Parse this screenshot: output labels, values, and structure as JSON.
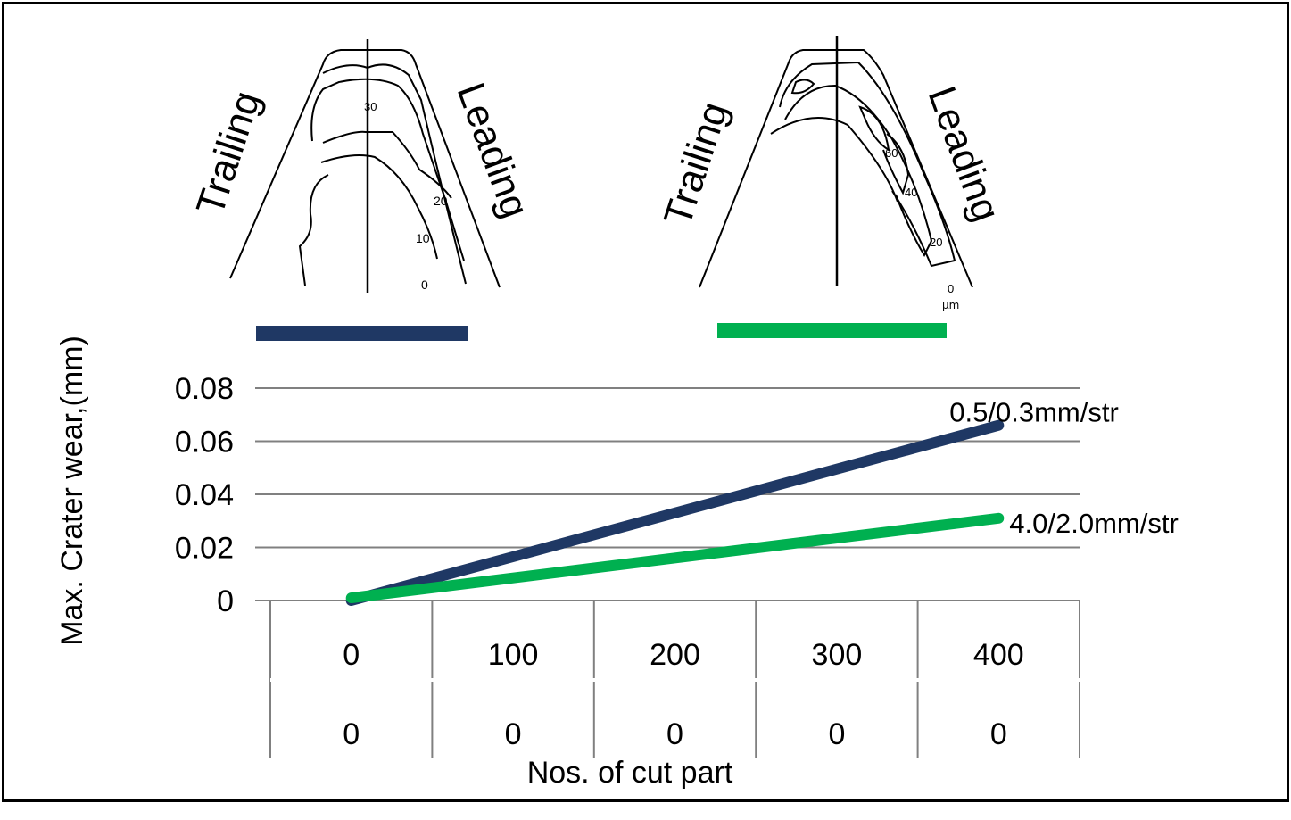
{
  "images": [
    {
      "trailing": "Trailing",
      "leading": "Leading",
      "contour_labels": [
        "30",
        "20",
        "10",
        "0"
      ]
    },
    {
      "trailing": "Trailing",
      "leading": "Leading",
      "contour_labels": [
        "60",
        "40",
        "20",
        "0",
        "μm"
      ]
    }
  ],
  "chart_data": {
    "type": "line",
    "ylabel": "Max. Crater wear,(mm)",
    "xlabel": "Nos. of cut part",
    "ylim": [
      0,
      0.08
    ],
    "y_ticks": [
      "0",
      "0.02",
      "0.04",
      "0.06",
      "0.08"
    ],
    "y_tick_values": [
      0,
      0.02,
      0.04,
      0.06,
      0.08
    ],
    "categories": [
      "0",
      "100",
      "200",
      "300",
      "400"
    ],
    "category_row2": [
      "0",
      "0",
      "0",
      "0",
      "0"
    ],
    "grid": true,
    "legend": "top (colored bars under each image)",
    "series": [
      {
        "name": "0.5/0.3mm/str",
        "color": "#1f3864",
        "x": [
          0,
          400
        ],
        "values": [
          0,
          0.066
        ]
      },
      {
        "name": "4.0/2.0mm/str",
        "color": "#00b050",
        "x": [
          0,
          400
        ],
        "values": [
          0.001,
          0.031
        ]
      }
    ]
  }
}
